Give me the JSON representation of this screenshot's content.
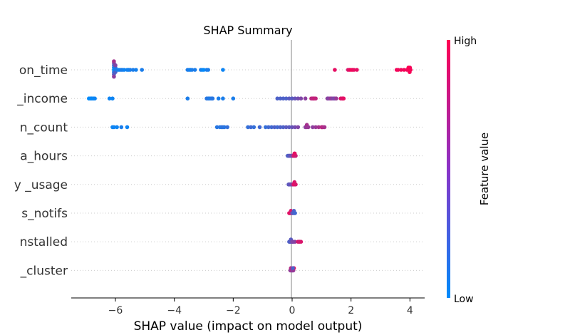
{
  "chart_data": {
    "type": "scatter",
    "subtype": "shap-beeswarm",
    "title": "SHAP Summary",
    "xlabel": "SHAP value (impact on model output)",
    "xlim": [
      -7.5,
      4.5
    ],
    "xticks": [
      {
        "value": -6,
        "label": "−6"
      },
      {
        "value": -4,
        "label": "−4"
      },
      {
        "value": -2,
        "label": "−2"
      },
      {
        "value": 0,
        "label": "0"
      },
      {
        "value": 2,
        "label": "2"
      },
      {
        "value": 4,
        "label": "4"
      }
    ],
    "features": [
      "on_time",
      "_income",
      "n_count",
      "a_hours",
      "_usage",
      "s_notifs",
      "nstalled",
      "_cluster"
    ],
    "feature_label_prefix": [
      "",
      "",
      "",
      "",
      "y",
      "",
      "",
      ""
    ],
    "grid": false,
    "zero_line": true,
    "colorbar": {
      "label": "Feature value",
      "high_label": "High",
      "low_label": "Low",
      "low_color": "#008bfb",
      "high_color": "#ff0052"
    },
    "series": [
      {
        "feature": "on_time",
        "points": [
          [
            -6.05,
            0.0
          ],
          [
            -6.05,
            0.05
          ],
          [
            -6.05,
            0.15
          ],
          [
            -6.05,
            0.25
          ],
          [
            -6.05,
            0.35
          ],
          [
            -6.05,
            0.45
          ],
          [
            -6.05,
            0.55
          ],
          [
            -6.05,
            0.65
          ],
          [
            -6.0,
            0.05
          ],
          [
            -6.0,
            0.15
          ],
          [
            -6.0,
            0.3
          ],
          [
            -6.0,
            0.5
          ],
          [
            -5.95,
            0.1
          ],
          [
            -5.9,
            0.1
          ],
          [
            -5.85,
            0.05
          ],
          [
            -5.8,
            0.1
          ],
          [
            -5.75,
            0.1
          ],
          [
            -5.7,
            0.05
          ],
          [
            -5.6,
            0.08
          ],
          [
            -5.55,
            0.05
          ],
          [
            -5.5,
            0.1
          ],
          [
            -5.4,
            0.1
          ],
          [
            -5.3,
            0.08
          ],
          [
            -5.1,
            0.1
          ],
          [
            -3.55,
            0.1
          ],
          [
            -3.5,
            0.1
          ],
          [
            -3.45,
            0.05
          ],
          [
            -3.4,
            0.1
          ],
          [
            -3.3,
            0.1
          ],
          [
            -3.1,
            0.1
          ],
          [
            -3.05,
            0.05
          ],
          [
            -3.0,
            0.0
          ],
          [
            -2.9,
            0.1
          ],
          [
            -2.85,
            0.1
          ],
          [
            -2.35,
            0.05
          ],
          [
            1.45,
            0.9
          ],
          [
            1.9,
            0.85
          ],
          [
            1.95,
            0.9
          ],
          [
            2.0,
            0.95
          ],
          [
            2.05,
            0.95
          ],
          [
            2.1,
            0.9
          ],
          [
            2.2,
            0.9
          ],
          [
            3.55,
            0.95
          ],
          [
            3.6,
            0.95
          ],
          [
            3.7,
            0.95
          ],
          [
            3.8,
            0.95
          ],
          [
            3.9,
            0.95
          ],
          [
            3.95,
            0.95
          ],
          [
            3.98,
            0.95
          ],
          [
            4.0,
            0.95
          ],
          [
            3.95,
            1.0
          ],
          [
            3.97,
            1.0
          ],
          [
            3.99,
            0.97
          ],
          [
            4.02,
            0.97
          ]
        ]
      },
      {
        "feature": "_income",
        "points": [
          [
            -6.9,
            0.0
          ],
          [
            -6.85,
            0.0
          ],
          [
            -6.8,
            0.05
          ],
          [
            -6.75,
            0.0
          ],
          [
            -6.7,
            0.05
          ],
          [
            -6.2,
            0.05
          ],
          [
            -6.1,
            0.05
          ],
          [
            -3.55,
            0.1
          ],
          [
            -2.9,
            0.15
          ],
          [
            -2.85,
            0.15
          ],
          [
            -2.8,
            0.1
          ],
          [
            -2.75,
            0.15
          ],
          [
            -2.7,
            0.15
          ],
          [
            -2.5,
            0.1
          ],
          [
            -2.35,
            0.1
          ],
          [
            -2.0,
            0.1
          ],
          [
            -0.5,
            0.3
          ],
          [
            -0.4,
            0.3
          ],
          [
            -0.3,
            0.3
          ],
          [
            -0.2,
            0.3
          ],
          [
            -0.1,
            0.35
          ],
          [
            0.0,
            0.35
          ],
          [
            0.1,
            0.4
          ],
          [
            0.2,
            0.45
          ],
          [
            0.3,
            0.5
          ],
          [
            0.45,
            0.55
          ],
          [
            0.65,
            0.75
          ],
          [
            0.7,
            0.75
          ],
          [
            0.72,
            0.7
          ],
          [
            0.75,
            0.8
          ],
          [
            0.8,
            0.75
          ],
          [
            1.2,
            0.55
          ],
          [
            1.25,
            0.5
          ],
          [
            1.3,
            0.6
          ],
          [
            1.35,
            0.55
          ],
          [
            1.4,
            0.5
          ],
          [
            1.45,
            0.5
          ],
          [
            1.5,
            0.6
          ],
          [
            1.65,
            0.85
          ],
          [
            1.7,
            0.9
          ],
          [
            1.72,
            0.85
          ],
          [
            1.75,
            0.9
          ]
        ]
      },
      {
        "feature": "n_count",
        "points": [
          [
            -6.1,
            0.05
          ],
          [
            -6.05,
            0.05
          ],
          [
            -5.95,
            0.05
          ],
          [
            -5.8,
            0.1
          ],
          [
            -5.6,
            0.05
          ],
          [
            -2.55,
            0.15
          ],
          [
            -2.45,
            0.15
          ],
          [
            -2.4,
            0.15
          ],
          [
            -2.35,
            0.2
          ],
          [
            -2.3,
            0.15
          ],
          [
            -2.2,
            0.2
          ],
          [
            -1.5,
            0.2
          ],
          [
            -1.4,
            0.25
          ],
          [
            -1.3,
            0.2
          ],
          [
            -1.1,
            0.25
          ],
          [
            -0.9,
            0.2
          ],
          [
            -0.8,
            0.25
          ],
          [
            -0.7,
            0.25
          ],
          [
            -0.6,
            0.3
          ],
          [
            -0.5,
            0.25
          ],
          [
            -0.4,
            0.3
          ],
          [
            -0.3,
            0.3
          ],
          [
            -0.2,
            0.35
          ],
          [
            -0.1,
            0.35
          ],
          [
            0.0,
            0.4
          ],
          [
            0.1,
            0.45
          ],
          [
            0.2,
            0.5
          ],
          [
            0.45,
            0.55
          ],
          [
            0.5,
            0.6
          ],
          [
            0.5,
            0.65
          ],
          [
            0.55,
            0.6
          ],
          [
            0.7,
            0.55
          ],
          [
            0.8,
            0.6
          ],
          [
            0.9,
            0.65
          ],
          [
            1.0,
            0.7
          ],
          [
            1.02,
            0.75
          ],
          [
            1.05,
            0.7
          ],
          [
            1.1,
            0.65
          ]
        ]
      },
      {
        "feature": "a_hours",
        "points": [
          [
            -0.15,
            0.3
          ],
          [
            -0.12,
            0.35
          ],
          [
            -0.1,
            0.3
          ],
          [
            -0.08,
            0.35
          ],
          [
            -0.05,
            0.4
          ],
          [
            -0.02,
            0.4
          ],
          [
            0.0,
            0.45
          ],
          [
            0.02,
            0.5
          ],
          [
            0.05,
            0.8
          ],
          [
            0.07,
            0.85
          ],
          [
            0.08,
            0.9
          ],
          [
            0.1,
            0.85
          ],
          [
            0.12,
            0.8
          ],
          [
            0.09,
            0.9
          ]
        ]
      },
      {
        "feature": "_usage",
        "points": [
          [
            -0.12,
            0.35
          ],
          [
            -0.1,
            0.4
          ],
          [
            -0.08,
            0.35
          ],
          [
            -0.05,
            0.4
          ],
          [
            -0.02,
            0.45
          ],
          [
            0.0,
            0.5
          ],
          [
            0.02,
            0.55
          ],
          [
            0.05,
            0.85
          ],
          [
            0.07,
            0.9
          ],
          [
            0.08,
            0.85
          ],
          [
            0.1,
            0.9
          ],
          [
            0.12,
            0.85
          ]
        ]
      },
      {
        "feature": "s_notifs",
        "points": [
          [
            -0.1,
            0.9
          ],
          [
            -0.08,
            0.85
          ],
          [
            -0.06,
            0.9
          ],
          [
            -0.04,
            0.85
          ],
          [
            -0.02,
            0.8
          ],
          [
            0.0,
            0.5
          ],
          [
            0.02,
            0.4
          ],
          [
            0.04,
            0.35
          ],
          [
            0.06,
            0.3
          ],
          [
            0.08,
            0.3
          ],
          [
            0.1,
            0.25
          ]
        ]
      },
      {
        "feature": "nstalled",
        "points": [
          [
            -0.1,
            0.3
          ],
          [
            -0.08,
            0.35
          ],
          [
            -0.06,
            0.3
          ],
          [
            -0.04,
            0.35
          ],
          [
            -0.02,
            0.4
          ],
          [
            0.0,
            0.45
          ],
          [
            0.05,
            0.5
          ],
          [
            0.1,
            0.55
          ],
          [
            0.2,
            0.85
          ],
          [
            0.25,
            0.8
          ],
          [
            0.3,
            0.85
          ],
          [
            0.02,
            0.5
          ]
        ]
      },
      {
        "feature": "_cluster",
        "points": [
          [
            -0.06,
            0.6
          ],
          [
            -0.04,
            0.7
          ],
          [
            -0.02,
            0.5
          ],
          [
            0.0,
            0.8
          ],
          [
            0.02,
            0.4
          ],
          [
            0.04,
            0.6
          ],
          [
            0.06,
            0.9
          ],
          [
            0.03,
            0.3
          ]
        ]
      }
    ]
  }
}
